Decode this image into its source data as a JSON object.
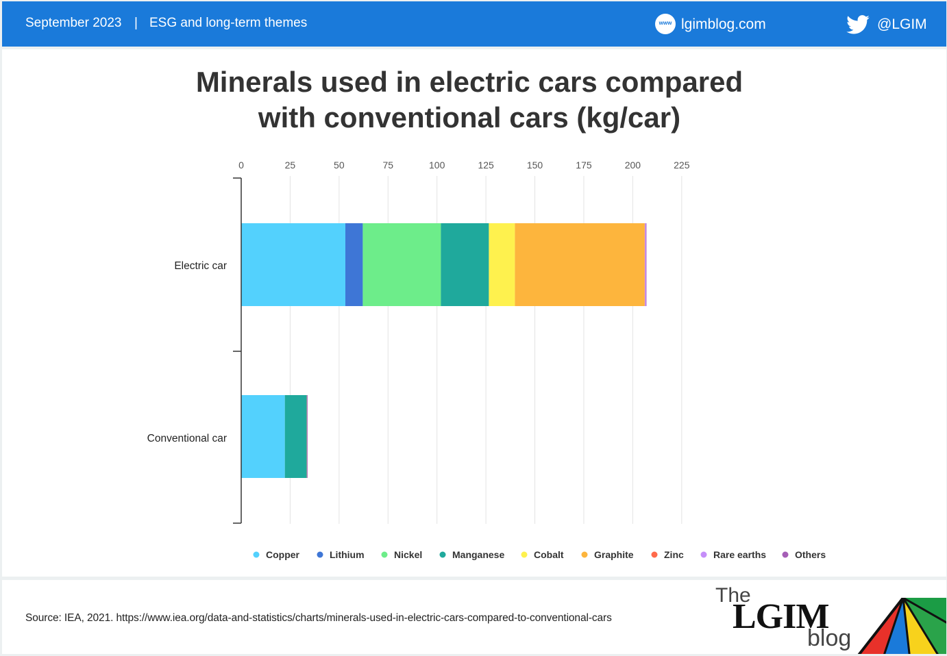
{
  "header": {
    "date": "September 2023",
    "separator": "|",
    "theme": "ESG and long-term themes",
    "web_icon_label": "www",
    "website": "lgimblog.com",
    "twitter_handle": "@LGIM"
  },
  "footer": {
    "source": "Source: IEA,  2021. https://www.iea.org/data-and-statistics/charts/minerals-used-in-electric-cars-compared-to-conventional-cars",
    "logo_the": "The",
    "logo_lgim": "LGIM",
    "logo_blog": "blog"
  },
  "chart_data": {
    "type": "bar",
    "orientation": "horizontal",
    "stacked": true,
    "title_line1": "Minerals used in electric cars compared",
    "title_line2": "with conventional cars (kg/car)",
    "categories": [
      "Electric car",
      "Conventional car"
    ],
    "xlim": [
      0,
      225
    ],
    "xticks": [
      0,
      25,
      50,
      75,
      100,
      125,
      150,
      175,
      200,
      225
    ],
    "grid": true,
    "legend_position": "bottom",
    "series": [
      {
        "name": "Copper",
        "color": "#53d1fd",
        "values": [
          53.2,
          22.3
        ]
      },
      {
        "name": "Lithium",
        "color": "#3e76d6",
        "values": [
          8.9,
          0
        ]
      },
      {
        "name": "Nickel",
        "color": "#6ded8a",
        "values": [
          39.9,
          0
        ]
      },
      {
        "name": "Manganese",
        "color": "#1fa99c",
        "values": [
          24.5,
          11.2
        ]
      },
      {
        "name": "Cobalt",
        "color": "#fef14e",
        "values": [
          13.3,
          0
        ]
      },
      {
        "name": "Graphite",
        "color": "#fdb53d",
        "values": [
          66.3,
          0
        ]
      },
      {
        "name": "Zinc",
        "color": "#ff6a4b",
        "values": [
          0.1,
          0.1
        ]
      },
      {
        "name": "Rare earths",
        "color": "#c58ef9",
        "values": [
          0.5,
          0
        ]
      },
      {
        "name": "Others",
        "color": "#a55eb6",
        "values": [
          0.3,
          0.3
        ]
      }
    ]
  }
}
